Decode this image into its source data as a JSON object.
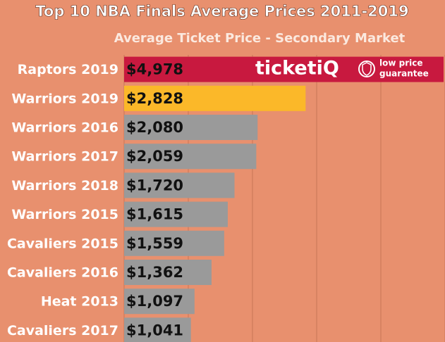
{
  "chart_data": {
    "type": "hbar",
    "title": "Top 10 NBA Finals Average Prices 2011-2019",
    "subtitle": "Average Ticket Price - Secondary Market",
    "categories": [
      "Raptors 2019",
      "Warriors 2019",
      "Warriors 2016",
      "Warriors 2017",
      "Warriors 2018",
      "Warriors 2015",
      "Cavaliers 2015",
      "Cavaliers 2016",
      "Heat 2013",
      "Cavaliers 2017"
    ],
    "values": [
      4978,
      2828,
      2080,
      2059,
      1720,
      1615,
      1559,
      1362,
      1097,
      1041
    ],
    "value_labels": [
      "$4,978",
      "$2,828",
      "$2,080",
      "$2,059",
      "$1,720",
      "$1,615",
      "$1,559",
      "$1,362",
      "$1,097",
      "$1,041"
    ],
    "colors": [
      "#c8193f",
      "#fbb829",
      "#9a9a9a",
      "#9a9a9a",
      "#9a9a9a",
      "#9a9a9a",
      "#9a9a9a",
      "#9a9a9a",
      "#9a9a9a",
      "#9a9a9a"
    ],
    "xlim": [
      0,
      5000
    ],
    "xticks": [
      0,
      1000,
      2000,
      3000,
      4000,
      5000
    ],
    "grid": true
  },
  "logo": {
    "brand": "ticketiQ",
    "tagline": [
      "low price",
      "guarantee"
    ]
  }
}
